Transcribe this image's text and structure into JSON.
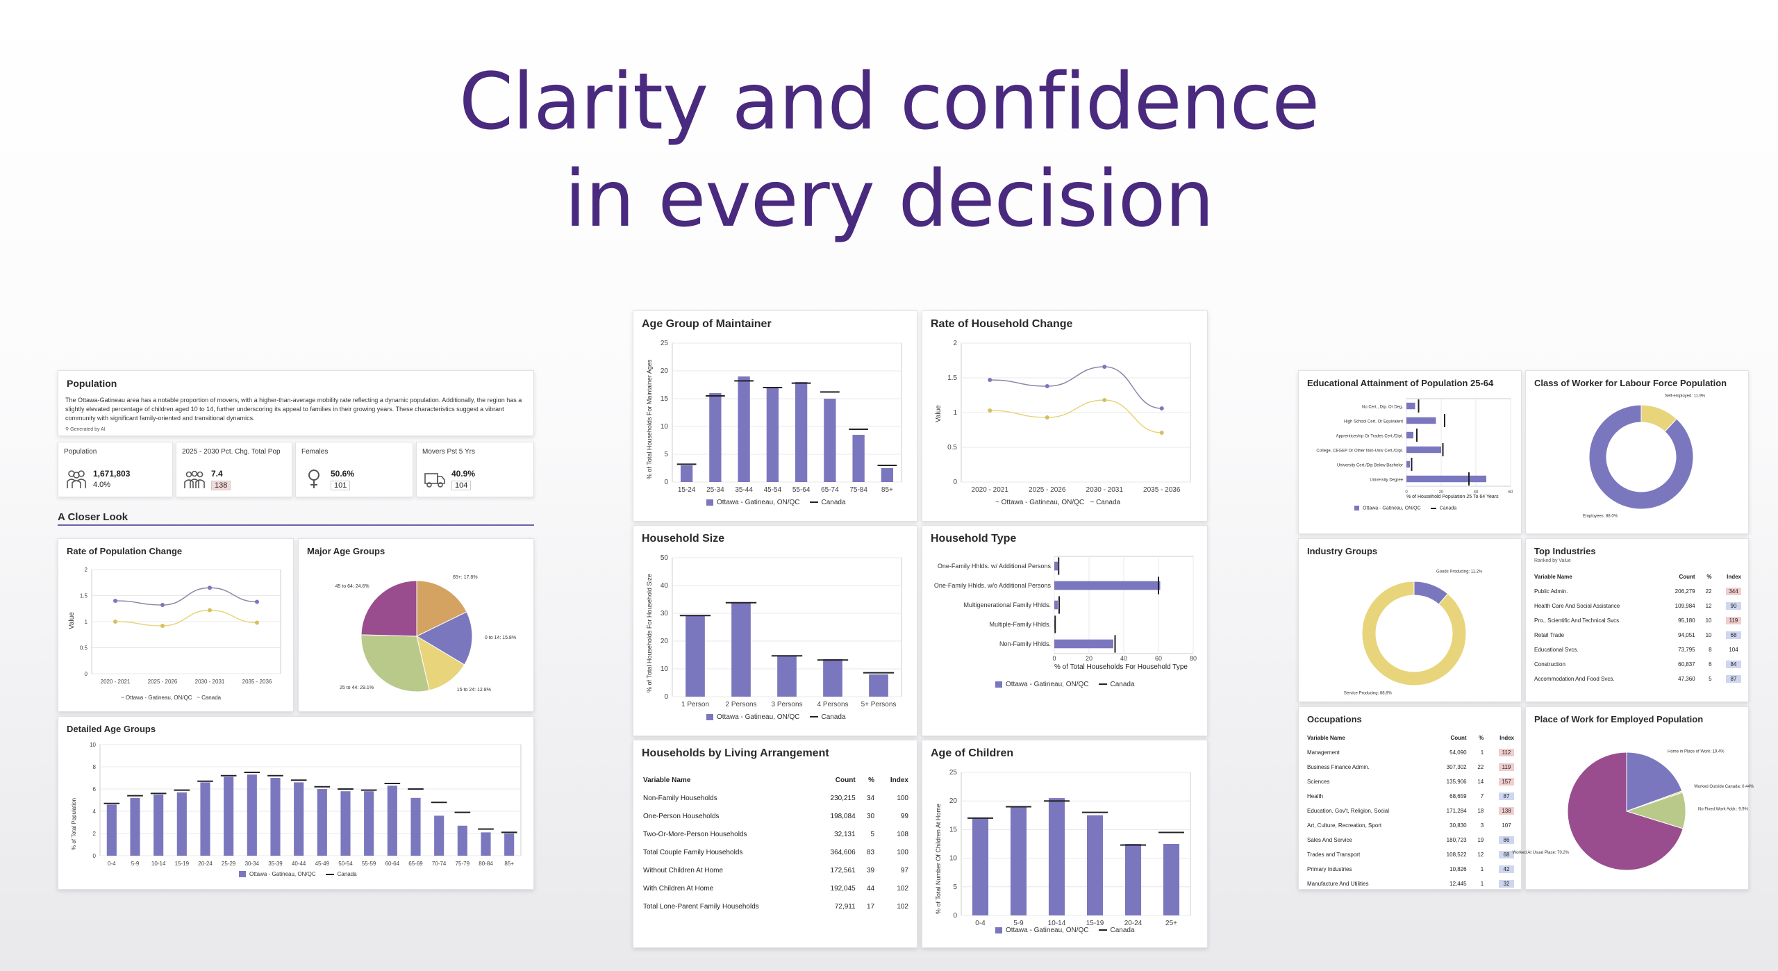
{
  "headline": {
    "line1": "Clarity and confidence",
    "line2": "in every decision"
  },
  "colors": {
    "primary": "#7b77bf",
    "secondary": "#e8d47a",
    "headline": "#4a2a7e"
  },
  "legend": {
    "ottawa": "Ottawa - Gatineau, ON/QC",
    "canada": "Canada"
  },
  "population": {
    "title": "Population",
    "summary": "The Ottawa-Gatineau area has a notable proportion of movers, with a higher-than-average mobility rate reflecting a dynamic population. Additionally, the region has a slightly elevated percentage of children aged 10 to 14, further underscoring its appeal to families in their growing years. These characteristics suggest a vibrant community with significant family-oriented and transitional dynamics.",
    "generated": "Generated by AI",
    "kpis": [
      {
        "title": "Population",
        "value": "1,671,803",
        "sub": "4.0%",
        "icon": "people-icon"
      },
      {
        "title": "2025 - 2030 Pct. Chg. Total Pop",
        "value": "7.4",
        "sub": "138",
        "icon": "group-icon"
      },
      {
        "title": "Females",
        "value": "50.6%",
        "sub": "101",
        "icon": "female-icon"
      },
      {
        "title": "Movers Pst 5 Yrs",
        "value": "40.9%",
        "sub": "104",
        "icon": "truck-icon"
      }
    ],
    "closer_look": "A Closer Look"
  },
  "charts": {
    "rate_pop_change": {
      "title": "Rate of Population Change",
      "ylabel": "Value"
    },
    "major_age_groups": {
      "title": "Major Age Groups"
    },
    "detailed_age_groups": {
      "title": "Detailed Age Groups",
      "ylabel": "% of Total Population"
    },
    "age_group_maintainer": {
      "title": "Age Group of Maintainer",
      "ylabel": "% of Total Households For Maintainer Ages"
    },
    "rate_household_change": {
      "title": "Rate of Household Change",
      "ylabel": "Value"
    },
    "household_size": {
      "title": "Household Size",
      "ylabel": "% of Total Households For Household Size"
    },
    "household_type": {
      "title": "Household Type",
      "xlabel": "% of Total Households For Household Type"
    },
    "age_of_children": {
      "title": "Age of Children",
      "ylabel": "% of Total Number Of Children At Home"
    },
    "educational_attainment": {
      "title": "Educational Attainment of Population 25-64",
      "xlabel": "% of Household Population 25 To 64 Years"
    },
    "class_of_worker": {
      "title": "Class of Worker for Labour Force Population"
    },
    "industry_groups": {
      "title": "Industry Groups"
    },
    "place_of_work": {
      "title": "Place of Work for Employed Population"
    }
  },
  "living_arrangement": {
    "title": "Households by Living Arrangement",
    "headers": [
      "Variable Name",
      "Count",
      "%",
      "Index"
    ],
    "rows": [
      [
        "Non-Family Households",
        "230,215",
        "34",
        "100"
      ],
      [
        "One-Person Households",
        "198,084",
        "30",
        "99"
      ],
      [
        "Two-Or-More-Person Households",
        "32,131",
        "5",
        "108"
      ],
      [
        "Total Couple Family Households",
        "364,606",
        "83",
        "100"
      ],
      [
        "Without Children At Home",
        "172,561",
        "39",
        "97"
      ],
      [
        "With Children At Home",
        "192,045",
        "44",
        "102"
      ],
      [
        "Total Lone-Parent Family Households",
        "72,911",
        "17",
        "102"
      ]
    ]
  },
  "top_industries": {
    "title": "Top Industries",
    "subtitle": "Ranked by Value",
    "headers": [
      "Variable Name",
      "Count",
      "%",
      "Index"
    ],
    "rows": [
      [
        "Public Admin.",
        "206,279",
        "22",
        "344"
      ],
      [
        "Health Care And Social Assistance",
        "109,984",
        "12",
        "90"
      ],
      [
        "Pro., Scientific And Technical Svcs.",
        "95,180",
        "10",
        "119"
      ],
      [
        "Retail Trade",
        "94,051",
        "10",
        "68"
      ],
      [
        "Educational Svcs.",
        "73,795",
        "8",
        "104"
      ],
      [
        "Construction",
        "60,837",
        "6",
        "84"
      ],
      [
        "Accommodation And Food Svcs.",
        "47,360",
        "5",
        "87"
      ]
    ]
  },
  "occupations": {
    "title": "Occupations",
    "headers": [
      "Variable Name",
      "Count",
      "%",
      "Index"
    ],
    "rows": [
      [
        "Management",
        "54,090",
        "1",
        "112"
      ],
      [
        "Business Finance Admin.",
        "307,302",
        "22",
        "119"
      ],
      [
        "Sciences",
        "135,906",
        "14",
        "157"
      ],
      [
        "Health",
        "68,659",
        "7",
        "87"
      ],
      [
        "Education, Gov't, Religion, Social",
        "171,284",
        "18",
        "138"
      ],
      [
        "Art, Culture, Recreation, Sport",
        "30,830",
        "3",
        "107"
      ],
      [
        "Sales And Service",
        "180,723",
        "19",
        "86"
      ],
      [
        "Trades and Transport",
        "108,522",
        "12",
        "68"
      ],
      [
        "Primary Industries",
        "10,826",
        "1",
        "42"
      ],
      [
        "Manufacture And Utilities",
        "12,445",
        "1",
        "32"
      ]
    ]
  },
  "chart_data": [
    {
      "id": "rate_pop_change",
      "type": "line",
      "x": [
        "2020 - 2021",
        "2025 - 2026",
        "2030 - 2031",
        "2035 - 2036"
      ],
      "ylim": [
        0,
        2
      ],
      "yticks": [
        "0",
        "0.5",
        "1",
        "1.5",
        "2"
      ],
      "series": [
        {
          "name": "Ottawa - Gatineau, ON/QC",
          "values": [
            1.4,
            1.32,
            1.65,
            1.38
          ]
        },
        {
          "name": "Canada",
          "values": [
            1.0,
            0.92,
            1.22,
            0.98
          ]
        }
      ]
    },
    {
      "id": "major_age_groups",
      "type": "pie",
      "slices": [
        {
          "label": "65+: 17.8%",
          "value": 17.8,
          "color": "#d4a361"
        },
        {
          "label": "0 to 14: 15.8%",
          "value": 15.8,
          "color": "#7b77bf"
        },
        {
          "label": "15 to 24: 12.8%",
          "value": 12.8,
          "color": "#e8d47a"
        },
        {
          "label": "25 to 44: 29.1%",
          "value": 29.1,
          "color": "#b9c98a"
        },
        {
          "label": "45 to 64: 24.6%",
          "value": 24.6,
          "color": "#9a4d8e"
        }
      ]
    },
    {
      "id": "detailed_age_groups",
      "type": "bar",
      "categories": [
        "0-4",
        "5-9",
        "10-14",
        "15-19",
        "20-24",
        "25-29",
        "30-34",
        "35-39",
        "40-44",
        "45-49",
        "50-54",
        "55-59",
        "60-64",
        "65-69",
        "70-74",
        "75-79",
        "80-84",
        "85+"
      ],
      "ylim": [
        0,
        10
      ],
      "values": [
        4.6,
        5.2,
        5.5,
        5.7,
        6.6,
        7.1,
        7.3,
        7.0,
        6.6,
        6.0,
        5.8,
        5.8,
        6.3,
        5.2,
        3.6,
        2.7,
        2.1,
        2.0
      ],
      "canada": [
        4.7,
        5.4,
        5.6,
        5.9,
        6.7,
        7.2,
        7.5,
        7.2,
        6.8,
        6.2,
        6.0,
        5.9,
        6.5,
        6.0,
        4.8,
        3.9,
        2.4,
        2.1
      ]
    },
    {
      "id": "age_group_maintainer",
      "type": "bar",
      "categories": [
        "15-24",
        "25-34",
        "35-44",
        "45-54",
        "55-64",
        "65-74",
        "75-84",
        "85+"
      ],
      "ylim": [
        0,
        25
      ],
      "yticks": [
        "0",
        "5",
        "10",
        "15",
        "20",
        "25"
      ],
      "values": [
        3,
        16,
        19,
        17,
        18,
        15,
        8.5,
        2.5
      ],
      "canada": [
        3.2,
        15.5,
        18.2,
        17.0,
        17.8,
        16.2,
        9.5,
        3.0
      ]
    },
    {
      "id": "rate_household_change",
      "type": "line",
      "x": [
        "2020 - 2021",
        "2025 - 2026",
        "2030 - 2031",
        "2035 - 2036"
      ],
      "ylim": [
        0,
        2
      ],
      "yticks": [
        "0",
        "0.5",
        "1",
        "1.5",
        "2"
      ],
      "series": [
        {
          "name": "Ottawa - Gatineau, ON/QC",
          "values": [
            1.47,
            1.38,
            1.66,
            1.06
          ]
        },
        {
          "name": "Canada",
          "values": [
            1.03,
            0.93,
            1.18,
            0.71
          ]
        }
      ]
    },
    {
      "id": "household_size",
      "type": "bar",
      "categories": [
        "1 Person",
        "2 Persons",
        "3 Persons",
        "4 Persons",
        "5+ Persons"
      ],
      "ylim": [
        0,
        50
      ],
      "yticks": [
        "0",
        "10",
        "20",
        "30",
        "40",
        "50"
      ],
      "values": [
        29,
        34,
        14.5,
        13.5,
        8
      ],
      "canada": [
        29.2,
        33.8,
        14.7,
        13.2,
        8.6
      ]
    },
    {
      "id": "household_type",
      "type": "bar",
      "orientation": "horizontal",
      "categories": [
        "One-Family Hhlds. w/ Additional Persons",
        "One-Family Hhlds. w/o Additional Persons",
        "Multigenerational Family Hhlds.",
        "Multiple-Family Hhlds.",
        "Non-Family Hhlds."
      ],
      "xlim": [
        0,
        80
      ],
      "xticks": [
        "0",
        "20",
        "40",
        "60",
        "80"
      ],
      "values": [
        2,
        61,
        2,
        0.5,
        34
      ],
      "canada": [
        2.5,
        60,
        2.8,
        0.5,
        35
      ]
    },
    {
      "id": "age_of_children",
      "type": "bar",
      "categories": [
        "0-4",
        "5-9",
        "10-14",
        "15-19",
        "20-24",
        "25+"
      ],
      "ylim": [
        0,
        25
      ],
      "yticks": [
        "0",
        "5",
        "10",
        "15",
        "20",
        "25"
      ],
      "values": [
        17,
        19,
        20.5,
        17.5,
        12.5,
        12.5
      ],
      "canada": [
        17,
        19,
        20,
        18,
        12.3,
        14.5
      ]
    },
    {
      "id": "educational_attainment",
      "type": "bar",
      "orientation": "horizontal",
      "categories": [
        "No Cert., Dip. Or Deg.",
        "High School Cert. Or Equivalent",
        "Apprenticeship Or Trades Cert./Dipl.",
        "College, CEGEP Or Other Non-Univ Cert./Dipl.",
        "University Cert./Dip Below Bachelor",
        "University Degree"
      ],
      "xlim": [
        0,
        60
      ],
      "xticks": [
        "0",
        "20",
        "40",
        "60"
      ],
      "values": [
        5,
        17,
        4,
        20,
        2,
        46
      ],
      "canada": [
        7,
        22,
        6,
        21,
        3,
        36
      ]
    },
    {
      "id": "class_of_worker",
      "type": "pie",
      "donut": true,
      "slices": [
        {
          "label": "Self-employed: 11.9%",
          "value": 11.9,
          "color": "#e8d47a"
        },
        {
          "label": "Employees: 88.0%",
          "value": 88.0,
          "color": "#7b77bf"
        }
      ]
    },
    {
      "id": "industry_groups",
      "type": "pie",
      "donut": true,
      "slices": [
        {
          "label": "Goods Producing: 11.2%",
          "value": 11.2,
          "color": "#7b77bf"
        },
        {
          "label": "Service Producing: 88.8%",
          "value": 88.8,
          "color": "#e8d47a"
        }
      ]
    },
    {
      "id": "place_of_work",
      "type": "pie",
      "slices": [
        {
          "label": "Home in Place of Work: 19.4%",
          "value": 19.4,
          "color": "#7b77bf"
        },
        {
          "label": "Worked Outside Canada: 0.44%",
          "value": 0.44,
          "color": "#e8d47a"
        },
        {
          "label": "No Fixed Work Addr.: 9.9%",
          "value": 9.9,
          "color": "#b9c98a"
        },
        {
          "label": "Worked At Usual Place: 70.2%",
          "value": 70.2,
          "color": "#9a4d8e"
        }
      ]
    }
  ]
}
